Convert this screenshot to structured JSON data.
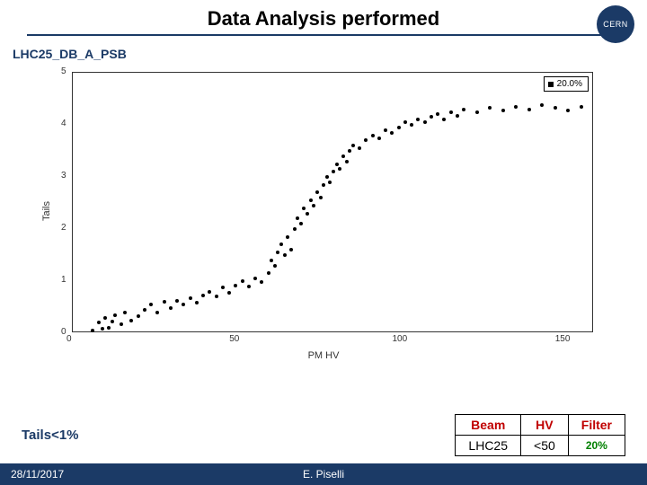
{
  "title": "Data Analysis performed",
  "logo_text": "CERN",
  "subtitle": "LHC25_DB_A_PSB",
  "chart": {
    "type": "scatter",
    "xlabel": "PM HV",
    "ylabel": "Tails",
    "legend_label": "20.0%",
    "xlim": [
      0,
      160
    ],
    "ylim": [
      0,
      5
    ],
    "xticks": [
      0,
      50,
      100,
      150
    ],
    "yticks": [
      0,
      1,
      2,
      3,
      4,
      5
    ],
    "marker_color": "#000000",
    "marker_size": 4,
    "background_color": "#ffffff",
    "border_color": "#333333",
    "points": [
      [
        6,
        0.05
      ],
      [
        8,
        0.2
      ],
      [
        9,
        0.08
      ],
      [
        10,
        0.3
      ],
      [
        11,
        0.1
      ],
      [
        12,
        0.22
      ],
      [
        13,
        0.35
      ],
      [
        15,
        0.18
      ],
      [
        16,
        0.4
      ],
      [
        18,
        0.25
      ],
      [
        20,
        0.32
      ],
      [
        22,
        0.45
      ],
      [
        24,
        0.55
      ],
      [
        26,
        0.4
      ],
      [
        28,
        0.6
      ],
      [
        30,
        0.48
      ],
      [
        32,
        0.62
      ],
      [
        34,
        0.55
      ],
      [
        36,
        0.68
      ],
      [
        38,
        0.58
      ],
      [
        40,
        0.72
      ],
      [
        42,
        0.8
      ],
      [
        44,
        0.7
      ],
      [
        46,
        0.88
      ],
      [
        48,
        0.78
      ],
      [
        50,
        0.92
      ],
      [
        52,
        1.0
      ],
      [
        54,
        0.9
      ],
      [
        56,
        1.05
      ],
      [
        58,
        0.98
      ],
      [
        60,
        1.15
      ],
      [
        61,
        1.4
      ],
      [
        62,
        1.3
      ],
      [
        63,
        1.55
      ],
      [
        64,
        1.7
      ],
      [
        65,
        1.5
      ],
      [
        66,
        1.85
      ],
      [
        67,
        1.6
      ],
      [
        68,
        2.0
      ],
      [
        69,
        2.2
      ],
      [
        70,
        2.1
      ],
      [
        71,
        2.4
      ],
      [
        72,
        2.3
      ],
      [
        73,
        2.55
      ],
      [
        74,
        2.45
      ],
      [
        75,
        2.7
      ],
      [
        76,
        2.6
      ],
      [
        77,
        2.85
      ],
      [
        78,
        3.0
      ],
      [
        79,
        2.9
      ],
      [
        80,
        3.1
      ],
      [
        81,
        3.25
      ],
      [
        82,
        3.15
      ],
      [
        83,
        3.4
      ],
      [
        84,
        3.3
      ],
      [
        85,
        3.5
      ],
      [
        86,
        3.6
      ],
      [
        88,
        3.55
      ],
      [
        90,
        3.7
      ],
      [
        92,
        3.8
      ],
      [
        94,
        3.75
      ],
      [
        96,
        3.9
      ],
      [
        98,
        3.85
      ],
      [
        100,
        3.95
      ],
      [
        102,
        4.05
      ],
      [
        104,
        4.0
      ],
      [
        106,
        4.1
      ],
      [
        108,
        4.05
      ],
      [
        110,
        4.15
      ],
      [
        112,
        4.2
      ],
      [
        114,
        4.1
      ],
      [
        116,
        4.25
      ],
      [
        118,
        4.18
      ],
      [
        120,
        4.3
      ],
      [
        124,
        4.25
      ],
      [
        128,
        4.32
      ],
      [
        132,
        4.28
      ],
      [
        136,
        4.35
      ],
      [
        140,
        4.3
      ],
      [
        144,
        4.38
      ],
      [
        148,
        4.33
      ],
      [
        152,
        4.28
      ],
      [
        156,
        4.35
      ]
    ]
  },
  "tails_label": "Tails<1%",
  "table": {
    "headers": [
      "Beam",
      "HV",
      "Filter"
    ],
    "row": [
      "LHC25",
      "<50",
      "20%"
    ],
    "header_color": "#c00000",
    "row_colors": [
      "#000000",
      "#000000",
      "#008000"
    ]
  },
  "footer": {
    "date": "28/11/2017",
    "author": "E. Piselli",
    "background_color": "#1b3a66",
    "text_color": "#ffffff"
  }
}
